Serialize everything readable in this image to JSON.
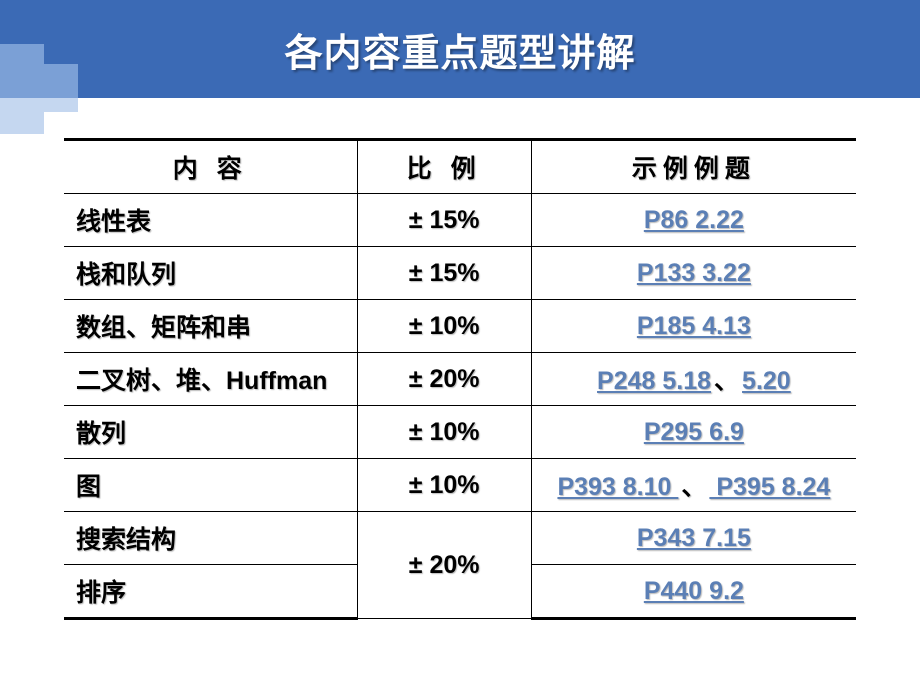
{
  "colors": {
    "header_bg": "#3b6ab5",
    "corner_light": "#c5d7f0",
    "corner_mid": "#7ba0d6",
    "link": "#5b7fb5",
    "border": "#000000",
    "text": "#000000",
    "title_text": "#ffffff"
  },
  "typography": {
    "title_fontsize": 38,
    "cell_fontsize": 25,
    "font_family": "SimHei"
  },
  "header": {
    "title": "各内容重点题型讲解"
  },
  "table": {
    "columns": [
      "内 容",
      "比 例",
      "示例例题"
    ],
    "column_widths_pct": [
      37,
      22,
      41
    ],
    "rows": [
      {
        "content": "线性表",
        "ratio": "± 15%",
        "links": [
          " P86   2.22"
        ],
        "sep": ""
      },
      {
        "content": "栈和队列",
        "ratio": "± 15%",
        "links": [
          "P133   3.22"
        ],
        "sep": ""
      },
      {
        "content": "数组、矩阵和串",
        "ratio": "± 10%",
        "links": [
          "P185   4.13"
        ],
        "sep": ""
      },
      {
        "content": "二叉树、堆、Huffman",
        "ratio": "± 20%",
        "links": [
          "P248   5.18",
          "5.20"
        ],
        "sep": "、"
      },
      {
        "content": "散列",
        "ratio": "± 10%",
        "links": [
          "P295   6.9"
        ],
        "sep": ""
      },
      {
        "content": "图",
        "ratio": "± 10%",
        "links": [
          "P393   8.10 ",
          " P395  8.24"
        ],
        "sep": "、"
      },
      {
        "content": "搜索结构",
        "ratio": "± 20%",
        "links": [
          "P343   7.15"
        ],
        "sep": "",
        "ratio_rowspan": 2
      },
      {
        "content": "排序",
        "ratio": "",
        "links": [
          "P440   9.2"
        ],
        "sep": "",
        "ratio_skip": true
      }
    ]
  }
}
